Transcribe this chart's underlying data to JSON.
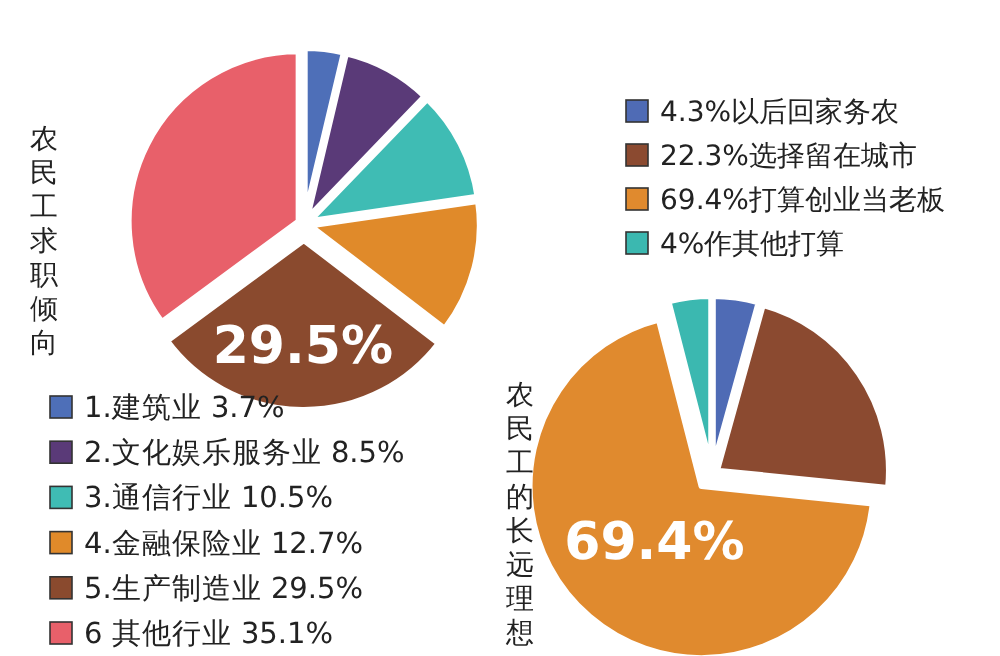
{
  "chart_data": [
    {
      "type": "pie",
      "title": "农民工求职倾向",
      "categories": [
        "1.建筑业  3.7%",
        "2.文化娱乐服务业 8.5%",
        "3.通信行业 10.5%",
        "4.金融保险业 12.7%",
        "5.生产制造业 29.5%",
        "6 其他行业  35.1%"
      ],
      "values": [
        3.7,
        8.5,
        10.5,
        12.7,
        29.5,
        35.1
      ],
      "colors": [
        "#4e6fb8",
        "#5a3a78",
        "#3fbcb4",
        "#e08a2a",
        "#8a4a2e",
        "#e8606a"
      ],
      "value_labels": [
        null,
        null,
        null,
        null,
        "29.5%",
        null
      ],
      "legend": "bottom"
    },
    {
      "type": "pie",
      "title": "农民工的长远理想",
      "categories": [
        "4.3%以后回家务农",
        "22.3%选择留在城市",
        "69.4%打算创业当老板",
        "4%作其他打算"
      ],
      "values": [
        4.3,
        22.3,
        69.4,
        4
      ],
      "colors": [
        "#4f6bb5",
        "#8b4a30",
        "#e08a2e",
        "#3bb8b0"
      ],
      "value_labels": [
        null,
        null,
        "69.4%",
        null
      ],
      "legend": "top"
    }
  ]
}
